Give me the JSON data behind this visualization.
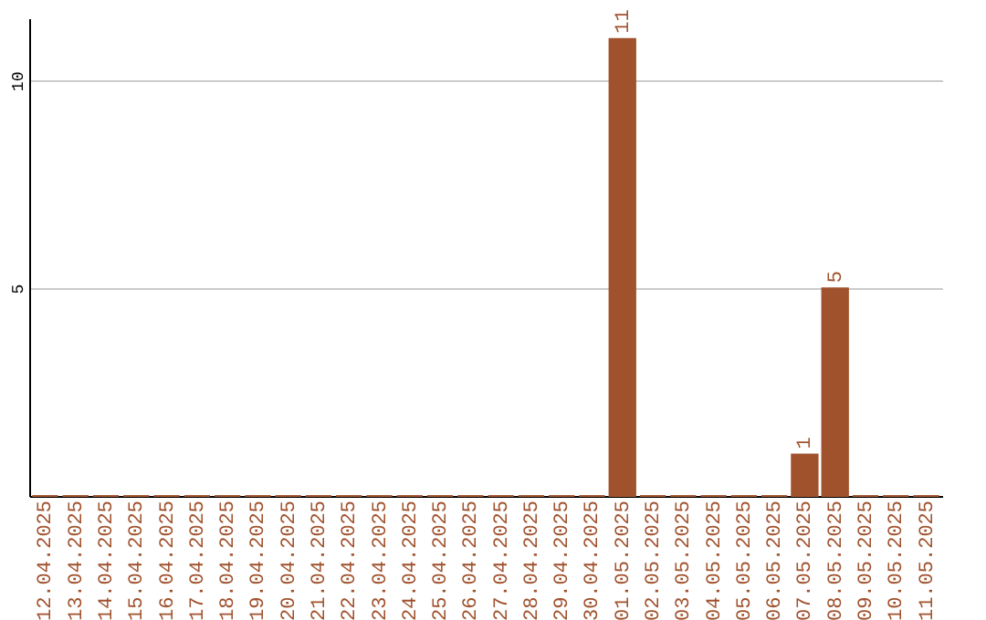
{
  "chart_data": {
    "type": "bar",
    "categories": [
      "12.04.2025",
      "13.04.2025",
      "14.04.2025",
      "15.04.2025",
      "16.04.2025",
      "17.04.2025",
      "18.04.2025",
      "19.04.2025",
      "20.04.2025",
      "21.04.2025",
      "22.04.2025",
      "23.04.2025",
      "24.04.2025",
      "25.04.2025",
      "26.04.2025",
      "27.04.2025",
      "28.04.2025",
      "29.04.2025",
      "30.04.2025",
      "01.05.2025",
      "02.05.2025",
      "03.05.2025",
      "04.05.2025",
      "05.05.2025",
      "06.05.2025",
      "07.05.2025",
      "08.05.2025",
      "09.05.2025",
      "10.05.2025",
      "11.05.2025"
    ],
    "values": [
      0,
      0,
      0,
      0,
      0,
      0,
      0,
      0,
      0,
      0,
      0,
      0,
      0,
      0,
      0,
      0,
      0,
      0,
      0,
      11,
      0,
      0,
      0,
      0,
      0,
      1,
      5,
      0,
      0,
      0
    ],
    "value_labels": [
      null,
      null,
      null,
      null,
      null,
      null,
      null,
      null,
      null,
      null,
      null,
      null,
      null,
      null,
      null,
      null,
      null,
      null,
      null,
      "11",
      null,
      null,
      null,
      null,
      null,
      "1",
      "5",
      null,
      null,
      null
    ],
    "color": "#a0522d",
    "ylim": [
      0,
      11.5
    ],
    "yticks": [
      5,
      10
    ],
    "grid": "y"
  }
}
